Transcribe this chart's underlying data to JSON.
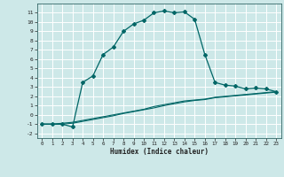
{
  "xlabel": "Humidex (Indice chaleur)",
  "bg_color": "#cde8e8",
  "grid_color": "#ffffff",
  "line_color": "#006666",
  "xlim": [
    -0.5,
    23.5
  ],
  "ylim": [
    -2.5,
    12
  ],
  "xticks": [
    0,
    1,
    2,
    3,
    4,
    5,
    6,
    7,
    8,
    9,
    10,
    11,
    12,
    13,
    14,
    15,
    16,
    17,
    18,
    19,
    20,
    21,
    22,
    23
  ],
  "yticks": [
    -2,
    -1,
    0,
    1,
    2,
    3,
    4,
    5,
    6,
    7,
    8,
    9,
    10,
    11
  ],
  "curve1_x": [
    0,
    1,
    2,
    3,
    4,
    5,
    6,
    7,
    8,
    9,
    10,
    11,
    12,
    13,
    14,
    15,
    16,
    17,
    18,
    19,
    20,
    21,
    22,
    23
  ],
  "curve1_y": [
    -1,
    -1,
    -1,
    -1.3,
    3.5,
    4.2,
    6.5,
    7.3,
    9.0,
    9.8,
    10.2,
    11.0,
    11.2,
    11.0,
    11.1,
    10.3,
    6.5,
    3.5,
    3.2,
    3.1,
    2.8,
    2.9,
    2.8,
    2.5
  ],
  "line2_x": [
    0,
    1,
    2,
    3,
    4,
    5,
    6,
    7,
    8,
    9,
    10,
    11,
    12,
    13,
    14,
    15,
    16,
    17,
    18,
    19,
    20,
    21,
    22,
    23
  ],
  "line2_y": [
    -1,
    -1,
    -0.9,
    -0.8,
    -0.6,
    -0.4,
    -0.2,
    0.0,
    0.2,
    0.4,
    0.6,
    0.9,
    1.1,
    1.3,
    1.5,
    1.6,
    1.7,
    1.9,
    2.0,
    2.1,
    2.2,
    2.3,
    2.4,
    2.5
  ],
  "line3_x": [
    0,
    1,
    2,
    3,
    4,
    5,
    6,
    7,
    8,
    9,
    10,
    11,
    12,
    13,
    14,
    15,
    16,
    17,
    18,
    19,
    20,
    21,
    22,
    23
  ],
  "line3_y": [
    -1,
    -1,
    -1.0,
    -0.9,
    -0.7,
    -0.5,
    -0.3,
    -0.1,
    0.15,
    0.35,
    0.55,
    0.75,
    1.0,
    1.2,
    1.4,
    1.55,
    1.65,
    1.85,
    1.95,
    2.05,
    2.15,
    2.25,
    2.35,
    2.45
  ]
}
